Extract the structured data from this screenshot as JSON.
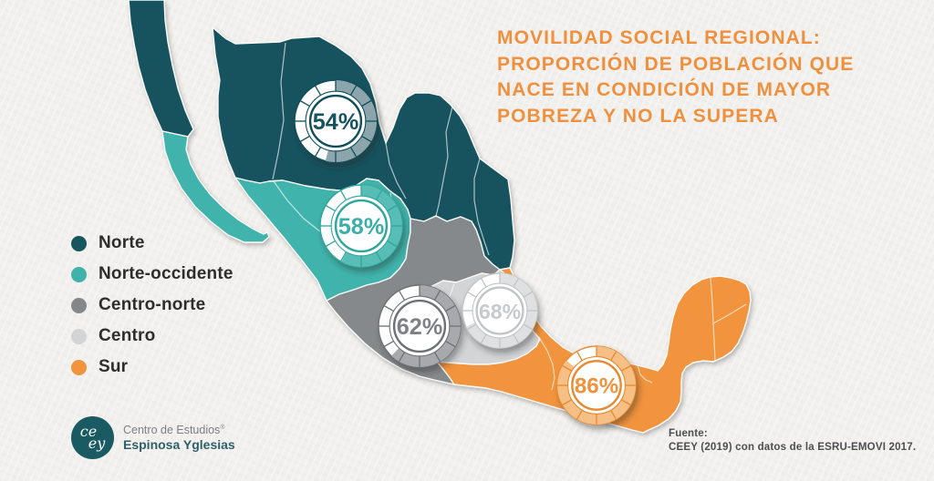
{
  "title": {
    "color": "#EF903E",
    "lines": [
      "MOVILIDAD SOCIAL REGIONAL:",
      "PROPORCIÓN DE POBLACIÓN QUE",
      "NACE EN CONDICIÓN DE MAYOR",
      "POBREZA Y NO LA SUPERA"
    ]
  },
  "legend": {
    "items": [
      {
        "label": "Norte",
        "color": "#17565F"
      },
      {
        "label": "Norte-occidente",
        "color": "#3FB3AB"
      },
      {
        "label": "Centro-norte",
        "color": "#85888B"
      },
      {
        "label": "Centro",
        "color": "#D2D4D5"
      },
      {
        "label": "Sur",
        "color": "#F2943D"
      }
    ]
  },
  "chart_data": {
    "type": "choropleth",
    "title": "Movilidad social regional: proporción de población que nace en condición de mayor pobreza y no la supera",
    "map": "Mexico",
    "unit": "%",
    "legend_position": "left",
    "regions": [
      {
        "name": "Norte",
        "value": 54,
        "color": "#14535E",
        "badge": {
          "text": "#14535E",
          "line": "#11505B",
          "fill": "#8CA4AB"
        }
      },
      {
        "name": "Norte-occidente",
        "value": 58,
        "color": "#41B4AC",
        "badge": {
          "text": "#3AAFA7",
          "line": "#2FA69E",
          "fill": "#58BDB5"
        }
      },
      {
        "name": "Centro-norte",
        "value": 62,
        "color": "#86898C",
        "badge": {
          "text": "#7E8184",
          "line": "#6E7174",
          "fill": "#A7A9AC"
        }
      },
      {
        "name": "Centro",
        "value": 68,
        "color": "#D2D4D5",
        "badge": {
          "text": "#C7C9CB",
          "line": "#C2C4C6",
          "fill": "#DFE0E1"
        }
      },
      {
        "name": "Sur",
        "value": 86,
        "color": "#F2943D",
        "badge": {
          "text": "#F0923C",
          "line": "#E8892D",
          "fill": "#F5BF85"
        }
      }
    ],
    "source": "CEEY (2019) con datos de la ESRU-EMOVI 2017."
  },
  "logo": {
    "monogram_top": "ce",
    "monogram_bottom": "ey",
    "line1": "Centro de Estudios",
    "registered": "®",
    "line2": "Espinosa Yglesias"
  },
  "source": {
    "label": "Fuente:",
    "text": "CEEY (2019) con datos de la ESRU-EMOVI 2017."
  }
}
